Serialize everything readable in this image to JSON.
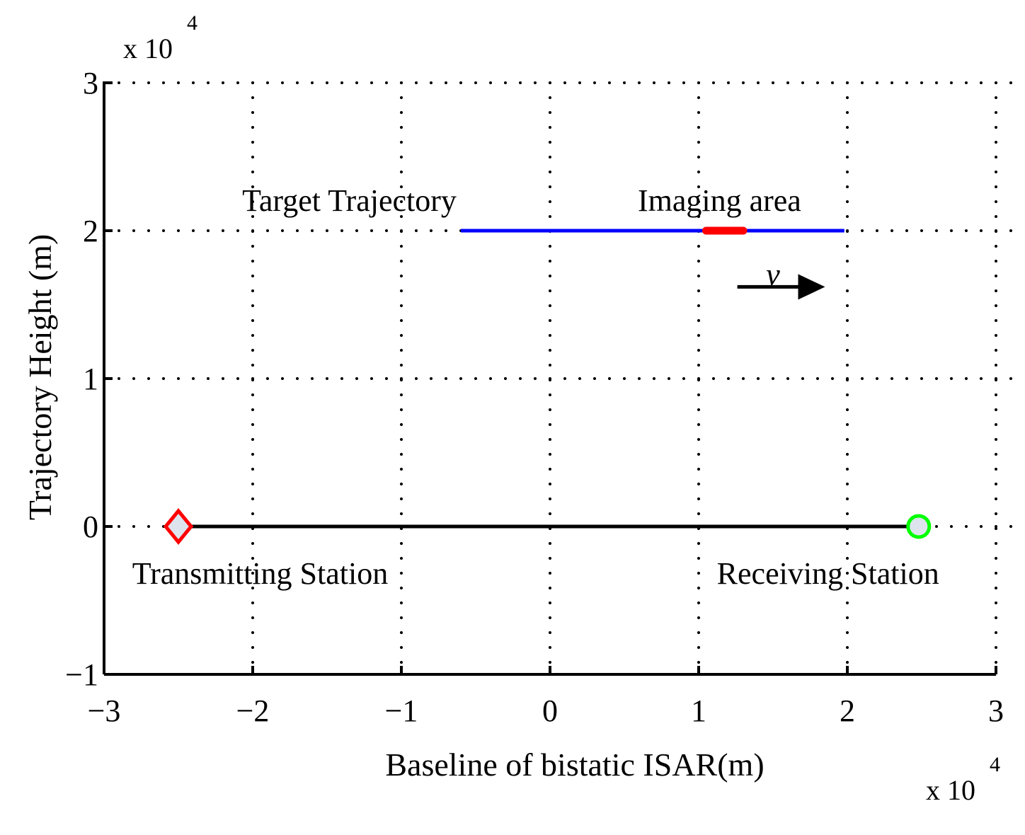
{
  "chart_data": {
    "type": "line",
    "xlabel": "Baseline of bistatic ISAR(m)",
    "ylabel": "Trajectory Height (m)",
    "xlim": [
      -30000,
      30000
    ],
    "ylim": [
      -10000,
      30000
    ],
    "x_ticks": [
      "−3",
      "−2",
      "−1",
      "0",
      "1",
      "2",
      "3"
    ],
    "y_ticks": [
      "−1",
      "0",
      "1",
      "2",
      "3"
    ],
    "x_multiplier": {
      "base": "x  10",
      "exp": "4"
    },
    "y_multiplier": {
      "base": "x  10",
      "exp": "4"
    },
    "grid": true,
    "series": [
      {
        "points": [
          [
            -25000,
            0
          ],
          [
            25000,
            0
          ]
        ],
        "color": "#000000"
      },
      {
        "points": [
          [
            -6000,
            20000
          ],
          [
            19800,
            20000
          ]
        ],
        "color": "#0000ff"
      },
      {
        "points": [
          [
            10500,
            20000
          ],
          [
            13000,
            20000
          ]
        ],
        "color": "#ff0000"
      }
    ],
    "markers": [
      {
        "shape": "diamond",
        "x": -25000,
        "y": 0,
        "edge": "#ff0000",
        "fill": "#dde4ee"
      },
      {
        "shape": "circle",
        "x": 24800,
        "y": 0,
        "edge": "#00ff00",
        "fill": "#dde4ee"
      }
    ],
    "annotations": [
      {
        "text": "Target Trajectory",
        "x": -13500,
        "y": 22000
      },
      {
        "text": "Imaging area",
        "x": 11400,
        "y": 22000
      },
      {
        "text": "Transmitting Station",
        "x": -19500,
        "y": -3200
      },
      {
        "text": "Receiving Station",
        "x": 18700,
        "y": -3200
      },
      {
        "text": "v",
        "x": 15000,
        "y": 17000
      }
    ],
    "velocity_arrow": {
      "from": [
        12600,
        16200
      ],
      "to": [
        18500,
        16200
      ]
    }
  }
}
